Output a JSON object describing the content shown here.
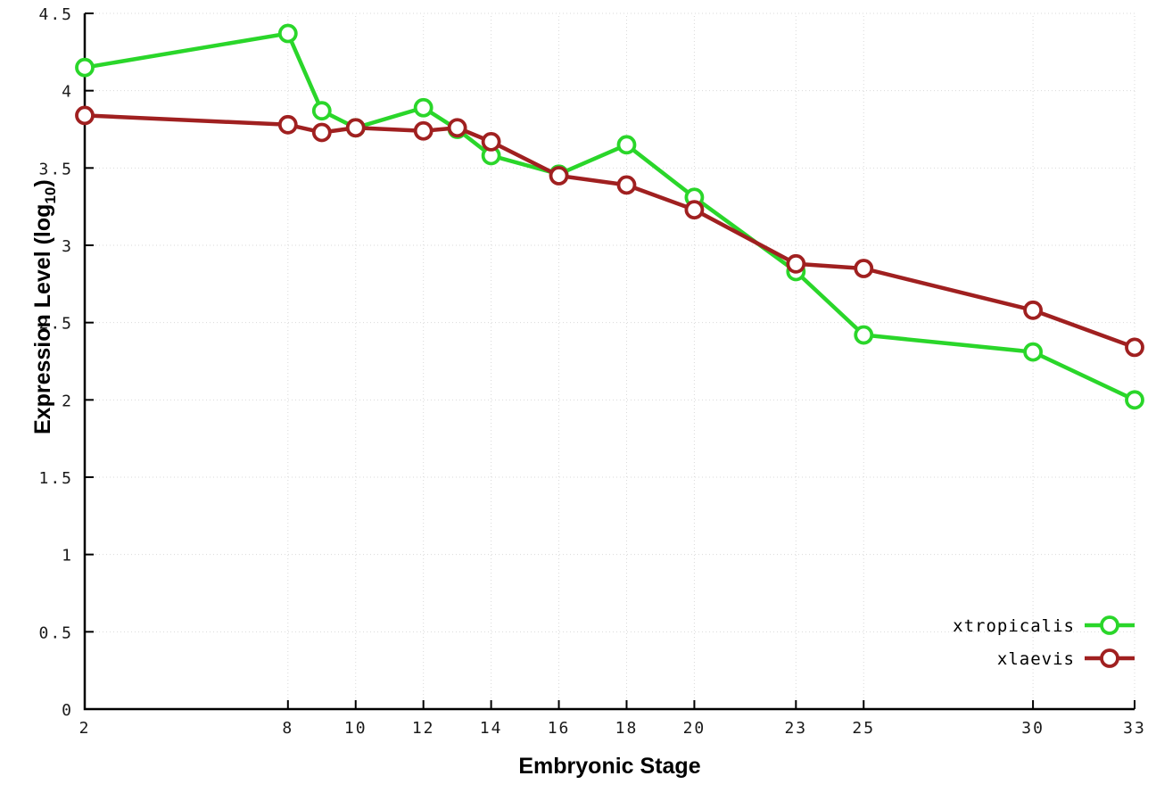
{
  "chart_data": {
    "type": "line",
    "title": "",
    "xlabel": "Embryonic Stage",
    "ylabel_prefix": "Expression Level (log",
    "ylabel_sub": "10",
    "ylabel_suffix": ")",
    "x": [
      2,
      8,
      9,
      10,
      12,
      13,
      14,
      16,
      18,
      20,
      23,
      25,
      30,
      33
    ],
    "xlim": [
      2,
      33
    ],
    "ylim": [
      0,
      4.5
    ],
    "xticks": [
      2,
      8,
      10,
      12,
      14,
      16,
      18,
      20,
      23,
      25,
      30,
      33
    ],
    "xtick_labels": [
      "2",
      "8",
      "10",
      "12",
      "14",
      "16",
      "18",
      "20",
      "23",
      "25",
      "30",
      "33"
    ],
    "yticks": [
      0,
      0.5,
      1,
      1.5,
      2,
      2.5,
      3,
      3.5,
      4,
      4.5
    ],
    "ytick_labels": [
      "0",
      "0.5",
      "1",
      "1.5",
      "2",
      "2.5",
      "3",
      "3.5",
      "4",
      "4.5"
    ],
    "grid": true,
    "grid_color": "#d9d9d9",
    "legend_position": "bottom-right",
    "marker": "open-circle",
    "series": [
      {
        "name": "xtropicalis",
        "color": "#2ad62a",
        "values": [
          4.15,
          4.37,
          3.87,
          3.76,
          3.89,
          3.75,
          3.58,
          3.46,
          3.65,
          3.31,
          2.83,
          2.42,
          2.31,
          2.0
        ]
      },
      {
        "name": "xlaevis",
        "color": "#a02020",
        "values": [
          3.84,
          3.78,
          3.73,
          3.76,
          3.74,
          3.76,
          3.67,
          3.45,
          3.39,
          3.23,
          2.88,
          2.85,
          2.58,
          2.34
        ]
      }
    ]
  }
}
